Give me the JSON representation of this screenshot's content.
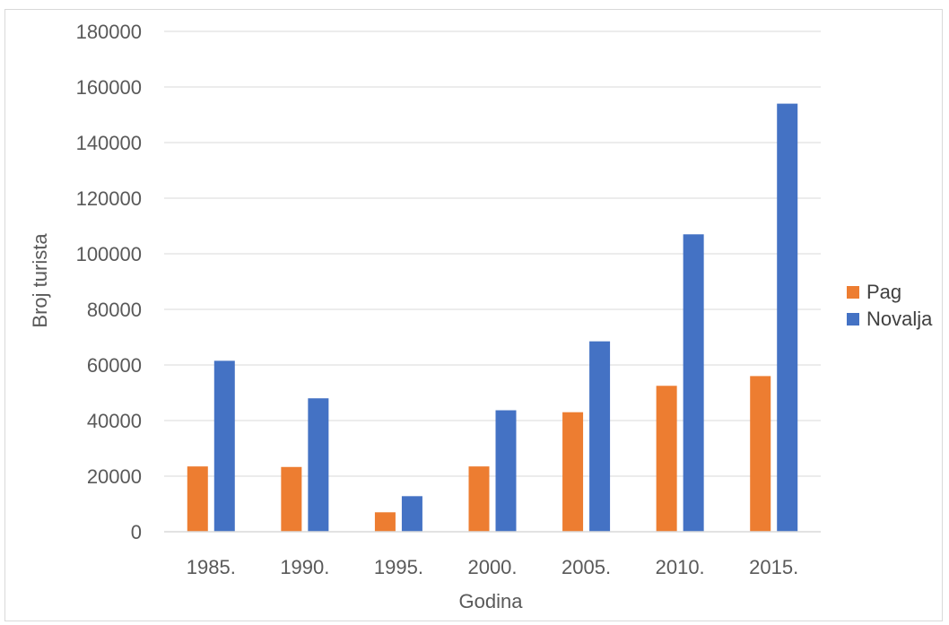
{
  "chart_data": {
    "type": "bar",
    "categories": [
      "1985.",
      "1990.",
      "1995.",
      "2000.",
      "2005.",
      "2010.",
      "2015."
    ],
    "series": [
      {
        "name": "Pag",
        "color": "#ED7D31",
        "values": [
          23500,
          23300,
          7000,
          23500,
          43000,
          52500,
          56000
        ]
      },
      {
        "name": "Novalja",
        "color": "#4472C4",
        "values": [
          61500,
          48000,
          12800,
          43700,
          68500,
          107000,
          154000
        ]
      }
    ],
    "xlabel": "Godina",
    "ylabel": "Broj turista",
    "ylim": [
      0,
      180000
    ],
    "yticks": [
      "0",
      "20000",
      "40000",
      "60000",
      "80000",
      "100000",
      "120000",
      "140000",
      "160000",
      "180000"
    ],
    "grid": true,
    "legend": "right"
  }
}
